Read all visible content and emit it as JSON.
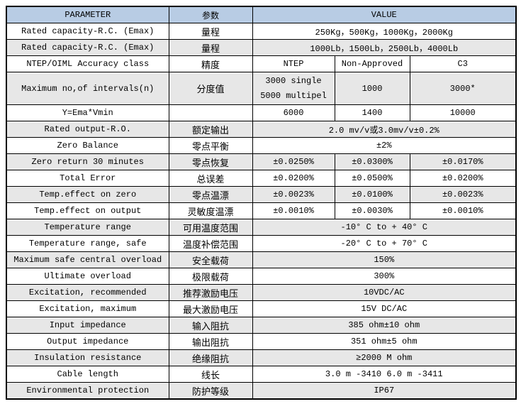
{
  "colors": {
    "header_bg": "#b8cce4",
    "alt_row_bg": "#e7e7e7",
    "border": "#000000"
  },
  "table": {
    "headers": {
      "parameter": "PARAMETER",
      "cn": "参数",
      "value": "VALUE"
    },
    "rows": [
      {
        "param": "Rated capacity-R.C. (Emax)",
        "cn": "量程",
        "value": "250Kg，500Kg，1000Kg，2000Kg"
      },
      {
        "param": "Rated capacity-R.C. (Emax)",
        "cn": "量程",
        "value": "1000Lb，1500Lb，2500Lb，4000Lb"
      },
      {
        "param": "NTEP/OIML Accuracy class",
        "cn": "精度",
        "values": [
          "NTEP",
          "Non-Approved",
          "C3"
        ]
      },
      {
        "param": "Maximum no,of intervals(n)",
        "cn": "分度值",
        "values": [
          "3000 single\n5000 multipel",
          "1000",
          "3000*"
        ],
        "tall": true
      },
      {
        "param": "Y=Ema*Vmin",
        "cn": "",
        "values": [
          "6000",
          "1400",
          "10000"
        ]
      },
      {
        "param": "Rated output-R.O.",
        "cn": "额定输出",
        "value": "2.0 mv/v或3.0mv/v±0.2%"
      },
      {
        "param": "Zero Balance",
        "cn": "零点平衡",
        "value": "±2%"
      },
      {
        "param": "Zero return 30 minutes",
        "cn": "零点恢复",
        "values": [
          "±0.0250%",
          "±0.0300%",
          "±0.0170%"
        ]
      },
      {
        "param": "Total Error",
        "cn": "总误差",
        "values": [
          "±0.0200%",
          "±0.0500%",
          "±0.0200%"
        ]
      },
      {
        "param": "Temp.effect on zero",
        "cn": "零点温漂",
        "values": [
          "±0.0023%",
          "±0.0100%",
          "±0.0023%"
        ]
      },
      {
        "param": "Temp.effect on output",
        "cn": "灵敏度温漂",
        "values": [
          "±0.0010%",
          "±0.0030%",
          "±0.0010%"
        ]
      },
      {
        "param": "Temperature range",
        "cn": "可用温度范围",
        "value": "-10° C to + 40° C"
      },
      {
        "param": "Temperature range, safe",
        "cn": "温度补偿范围",
        "value": "-20° C to + 70° C"
      },
      {
        "param": "Maximum safe central overload",
        "cn": "安全载荷",
        "value": "150%"
      },
      {
        "param": "Ultimate overload",
        "cn": "极限载荷",
        "value": "300%"
      },
      {
        "param": "Excitation, recommended",
        "cn": "推荐激励电压",
        "value": "10VDC/AC"
      },
      {
        "param": "Excitation, maximum",
        "cn": "最大激励电压",
        "value": "15V DC/AC"
      },
      {
        "param": "Input impedance",
        "cn": "输入阻抗",
        "value": "385 ohm±10 ohm"
      },
      {
        "param": "Output impedance",
        "cn": "输出阻抗",
        "value": "351 ohm±5 ohm"
      },
      {
        "param": "Insulation resistance",
        "cn": "绝缘阻抗",
        "value": "≥2000 M ohm"
      },
      {
        "param": "Cable length",
        "cn": "线长",
        "value": "3.0 m -3410  6.0 m -3411"
      },
      {
        "param": "Environmental protection",
        "cn": "防护等级",
        "value": "IP67"
      }
    ]
  }
}
